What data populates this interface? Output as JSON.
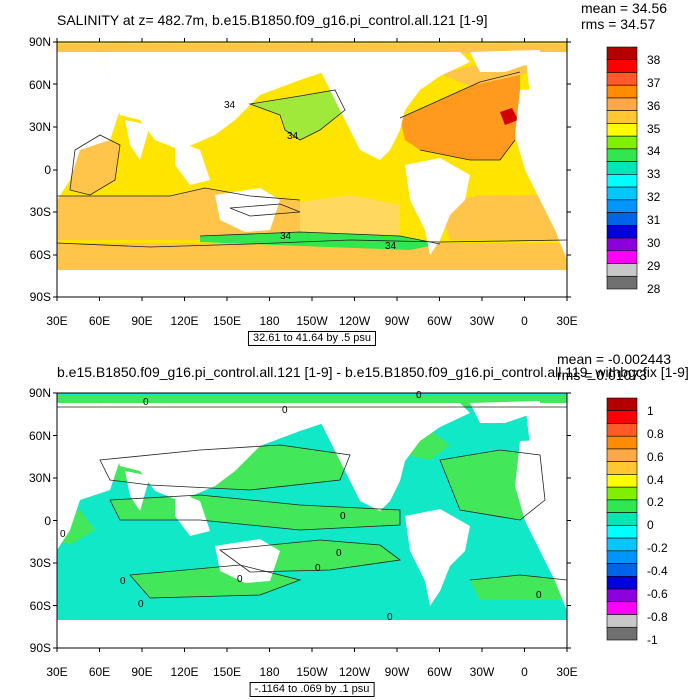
{
  "panel1": {
    "title": "SALINITY at z= 482.7m, b.e15.B1850.f09_g16.pi_control.all.121 [1-9]",
    "mean": "mean = 34.56",
    "rms": "rms = 34.57",
    "contour_info": "32.61 to 41.64 by .5 psu",
    "contour_labels": [
      "34",
      "34",
      "34",
      "34"
    ],
    "colorbar": {
      "labels": [
        "38",
        "37",
        "36",
        "35",
        "34",
        "33",
        "32",
        "31",
        "30",
        "29",
        "28"
      ],
      "colors": [
        "#b40000",
        "#ff0000",
        "#ff5a28",
        "#ff8c00",
        "#ffa846",
        "#ffc832",
        "#ffff00",
        "#7ff000",
        "#32e650",
        "#00e6b4",
        "#00ffff",
        "#00c8ff",
        "#0094ff",
        "#0064e6",
        "#0000dc",
        "#8c00dc",
        "#ff00ff",
        "#c8c8c8",
        "#707070"
      ]
    }
  },
  "panel2": {
    "title": "b.e15.B1850.f09_g16.pi_control.all.121 [1-9] - b.e15.B1850.f09_g16.pi_control.all.119_withbgcfix [1-9]",
    "mean": "mean = -0.002443",
    "rms": "rms = 0.01073",
    "contour_info": "-.1164 to .069 by .1 psu",
    "contour_labels": [
      "0",
      "0",
      "0",
      "0",
      "0",
      "0",
      "0",
      "0",
      "0",
      "0",
      "0",
      "0"
    ],
    "colorbar": {
      "labels": [
        "1",
        "0.8",
        "0.6",
        "0.4",
        "0.2",
        "0",
        "-0.2",
        "-0.4",
        "-0.6",
        "-0.8",
        "-1"
      ],
      "colors": [
        "#b40000",
        "#ff0000",
        "#ff5a28",
        "#ff8c00",
        "#ffa846",
        "#ffc832",
        "#ffff00",
        "#7ff000",
        "#32e650",
        "#00e6b4",
        "#00ffff",
        "#00c8ff",
        "#0094ff",
        "#0064e6",
        "#0000dc",
        "#8c00dc",
        "#ff00ff",
        "#c8c8c8",
        "#707070"
      ]
    }
  },
  "chart_data": [
    {
      "type": "heatmap",
      "title": "SALINITY at z= 482.7m, b.e15.B1850.f09_g16.pi_control.all.121 [1-9]",
      "variable": "salinity",
      "units": "psu",
      "mean": 34.56,
      "rms": 34.57,
      "contour_min": 32.61,
      "contour_max": 41.64,
      "contour_interval": 0.5,
      "x_ticks": [
        "30E",
        "60E",
        "90E",
        "120E",
        "150E",
        "180",
        "150W",
        "120W",
        "90W",
        "60W",
        "30W",
        "0",
        "30E"
      ],
      "y_ticks": [
        "90N",
        "60N",
        "30N",
        "0",
        "30S",
        "60S",
        "90S"
      ],
      "xlim": [
        30,
        390
      ],
      "ylim": [
        -90,
        90
      ],
      "colorbar_levels": [
        28,
        29,
        30,
        31,
        32,
        33,
        34,
        35,
        36,
        37,
        38
      ]
    },
    {
      "type": "heatmap",
      "title": "b.e15.B1850.f09_g16.pi_control.all.121 [1-9] - b.e15.B1850.f09_g16.pi_control.all.119_withbgcfix [1-9]",
      "variable": "salinity difference",
      "units": "psu",
      "mean": -0.002443,
      "rms": 0.01073,
      "contour_min": -0.1164,
      "contour_max": 0.069,
      "contour_interval": 0.1,
      "x_ticks": [
        "30E",
        "60E",
        "90E",
        "120E",
        "150E",
        "180",
        "150W",
        "120W",
        "90W",
        "60W",
        "30W",
        "0",
        "30E"
      ],
      "y_ticks": [
        "90N",
        "60N",
        "30N",
        "0",
        "30S",
        "60S",
        "90S"
      ],
      "xlim": [
        30,
        390
      ],
      "ylim": [
        -90,
        90
      ],
      "colorbar_levels": [
        -1,
        -0.8,
        -0.6,
        -0.4,
        -0.2,
        0,
        0.2,
        0.4,
        0.6,
        0.8,
        1
      ]
    }
  ]
}
